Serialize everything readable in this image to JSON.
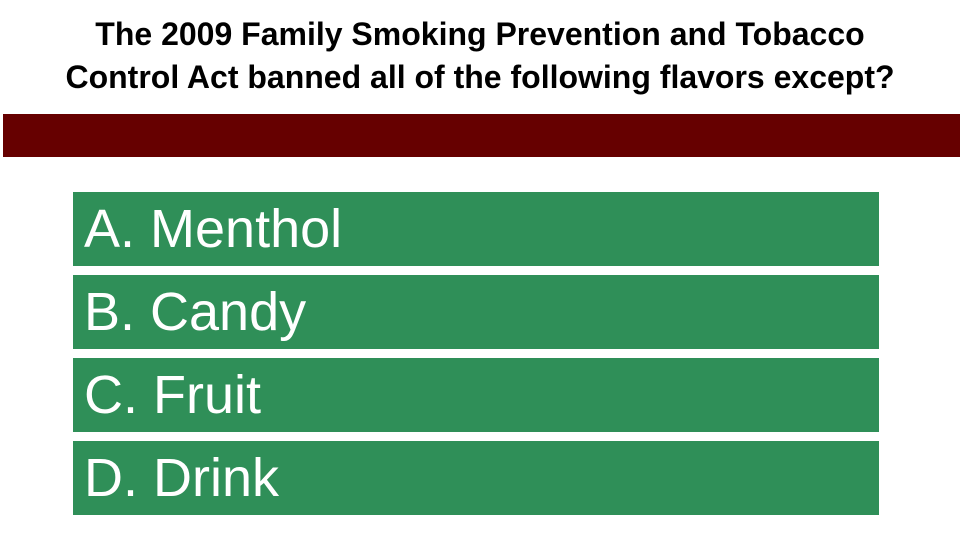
{
  "slide": {
    "question_lines": [
      "The 2009 Family Smoking Prevention and Tobacco",
      "Control Act banned all of the following flavors except?"
    ],
    "options": [
      {
        "label": "A. Menthol"
      },
      {
        "label": "B. Candy"
      },
      {
        "label": "C. Fruit"
      },
      {
        "label": "D. Drink"
      }
    ]
  },
  "colors": {
    "background": "#ffffff",
    "question_text": "#000000",
    "divider_bar": "#660000",
    "option_bg": "#2f8f58",
    "option_text": "#ffffff"
  }
}
